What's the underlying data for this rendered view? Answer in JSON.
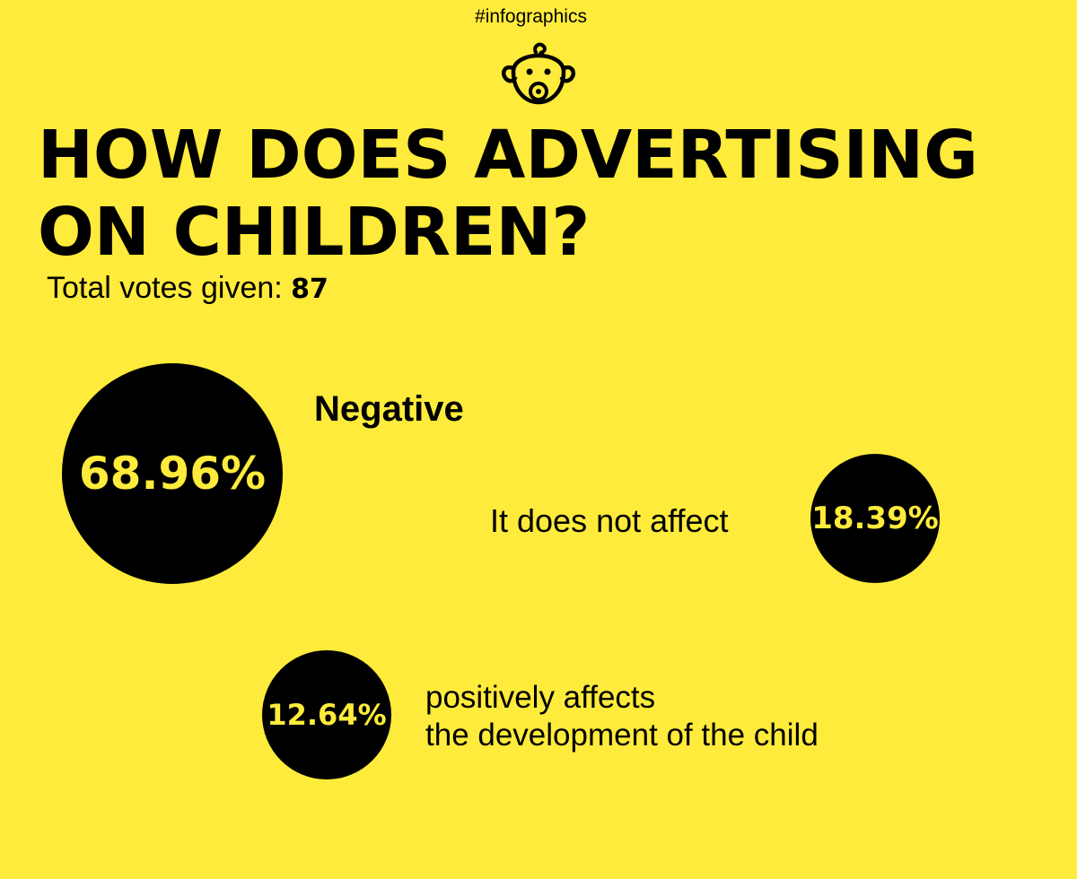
{
  "header": {
    "hashtag": "#infographics",
    "icon": "baby-face-icon"
  },
  "title": {
    "line1": "HOW DOES ADVERTISING",
    "line2": "ON CHILDREN?"
  },
  "votes": {
    "label": "Total votes given:",
    "count": "87"
  },
  "colors": {
    "background": "#ffeb3b",
    "bubble": "#000000",
    "bubble_text": "#ffeb3b"
  },
  "chart_data": {
    "type": "bubble",
    "unit": "%",
    "categories": [
      "Negative",
      "It does not affect",
      "positively affects the development of the child"
    ],
    "values": [
      68.96,
      18.39,
      12.64
    ],
    "labels": [
      "68.96%",
      "18.39%",
      "12.64%"
    ],
    "title": "HOW DOES ADVERTISING ON CHILDREN?",
    "legend": "none"
  },
  "answers": [
    {
      "label": "Negative"
    },
    {
      "label": "It does not affect"
    },
    {
      "label_line1": "positively affects",
      "label_line2": "the development of the child"
    }
  ]
}
